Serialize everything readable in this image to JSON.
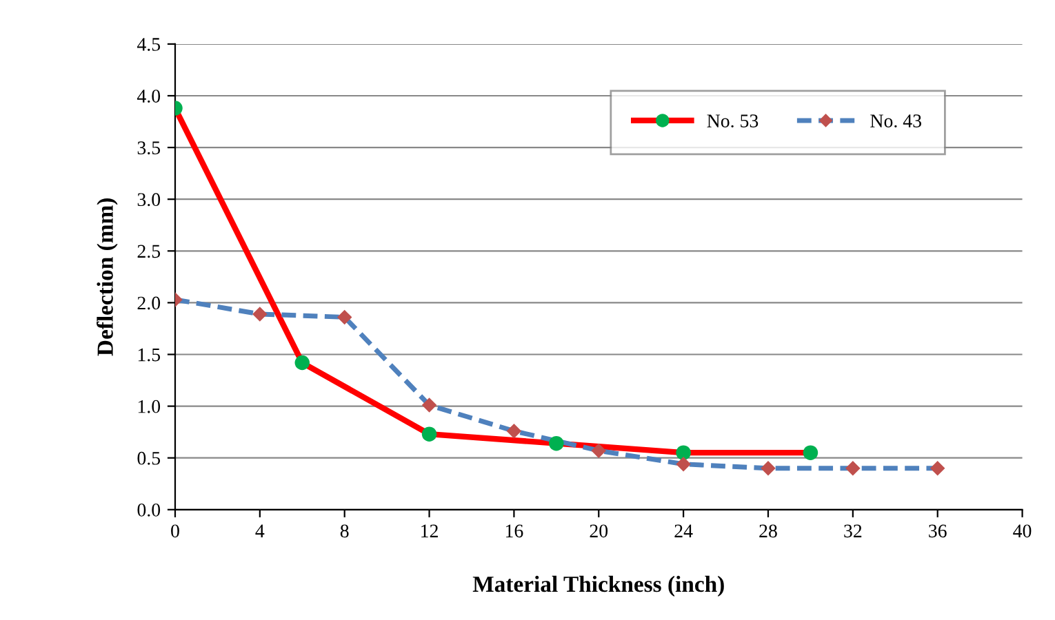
{
  "chart_data": {
    "type": "line",
    "xlabel": "Material Thickness (inch)",
    "ylabel": "Deflection (mm)",
    "xlim": [
      0,
      40
    ],
    "xticks": [
      0,
      4,
      8,
      12,
      16,
      20,
      24,
      28,
      32,
      36,
      40
    ],
    "ylim": [
      0,
      4.5
    ],
    "yticks": [
      {
        "value": 0,
        "label": "0.0"
      },
      0.5,
      {
        "value": 1,
        "label": "1.0"
      },
      1.5,
      {
        "value": 2,
        "label": "2.0"
      },
      2.5,
      {
        "value": 3,
        "label": "3.0"
      },
      3.5,
      {
        "value": 4,
        "label": "4.0"
      },
      4.5
    ],
    "grid": "y",
    "legend": "top right",
    "series": [
      {
        "name": "No. 53",
        "color": "#ff0000",
        "colors": [
          "#00b050",
          "#00b050",
          "#00b050",
          "#00b050",
          "#00b050",
          "#00b050"
        ],
        "marker": "circle",
        "line_style": "solid",
        "x": [
          0,
          6,
          12,
          18,
          24,
          30
        ],
        "values": [
          3.88,
          1.42,
          0.73,
          0.64,
          0.55,
          0.55
        ]
      },
      {
        "name": "No. 43",
        "color": "#4f81bd",
        "colors": [
          "#c0504d",
          "#c0504d",
          "#c0504d",
          "#c0504d",
          "#c0504d",
          "#c0504d",
          "#c0504d",
          "#c0504d",
          "#c0504d",
          "#c0504d"
        ],
        "marker": "diamond",
        "line_style": "dashed",
        "x": [
          0,
          4,
          8,
          12,
          16,
          20,
          24,
          28,
          32,
          36
        ],
        "values": [
          2.03,
          1.89,
          1.86,
          1.01,
          0.76,
          0.57,
          0.44,
          0.4,
          0.4,
          0.4
        ]
      }
    ]
  }
}
